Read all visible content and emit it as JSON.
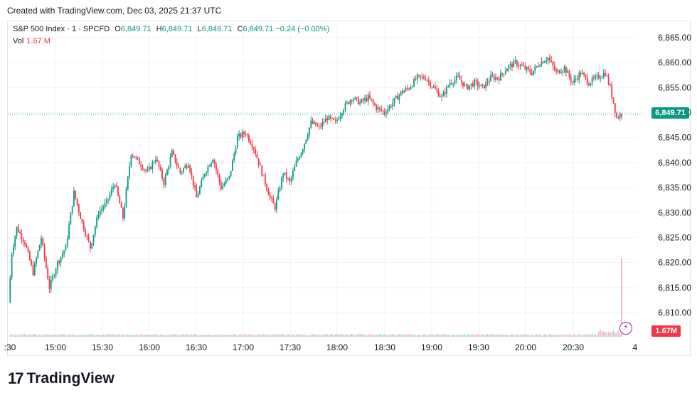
{
  "header": {
    "created": "Created with TradingView.com, Dec 03, 2025 21:37 UTC"
  },
  "legend": {
    "symbol": "S&P 500 Index · 1 · SPCFD",
    "open_label": "O",
    "open": "6,849.71",
    "high_label": "H",
    "high": "6,849.71",
    "low_label": "L",
    "low": "6,849.71",
    "close_label": "C",
    "close": "6,849.71",
    "change": "−0.24 (−0.00%)",
    "vol_label": "Vol",
    "vol_value": "1.67 M"
  },
  "price_tag": "6,849.71",
  "volume_tag": "1.67M",
  "brand": {
    "logo": "17",
    "name": "TradingView"
  },
  "colors": {
    "up": "#089981",
    "down": "#f23645",
    "grid": "#f0f3fa",
    "accent": "#9c27b0"
  },
  "icons": [
    "lightning-icon",
    "tradingview-logo-icon"
  ],
  "chart_data": {
    "type": "candlestick",
    "title": "S&P 500 Index · 1 · SPCFD",
    "y_ticks": [
      "6,810.00",
      "6,815.00",
      "6,820.00",
      "6,825.00",
      "6,830.00",
      "6,835.00",
      "6,840.00",
      "6,845.00",
      "6,850.00",
      "6,855.00",
      "6,860.00",
      "6,865.00"
    ],
    "x_ticks": [
      ":30",
      "15:00",
      "15:30",
      "16:00",
      "16:30",
      "17:00",
      "17:30",
      "18:00",
      "18:30",
      "19:00",
      "19:30",
      "20:00",
      "20:30",
      "4"
    ],
    "ylim": [
      6807,
      6868
    ],
    "last_price": 6849.71,
    "series": [
      {
        "name": "price path",
        "values": [
          [
            0,
            6812
          ],
          [
            2,
            6822
          ],
          [
            5,
            6827
          ],
          [
            10,
            6824
          ],
          [
            15,
            6818
          ],
          [
            20,
            6825
          ],
          [
            25,
            6815
          ],
          [
            30,
            6820
          ],
          [
            35,
            6823
          ],
          [
            40,
            6834
          ],
          [
            45,
            6828
          ],
          [
            50,
            6823
          ],
          [
            55,
            6830
          ],
          [
            60,
            6832
          ],
          [
            65,
            6836
          ],
          [
            70,
            6829
          ],
          [
            75,
            6842
          ],
          [
            80,
            6840
          ],
          [
            85,
            6838
          ],
          [
            90,
            6841
          ],
          [
            95,
            6836
          ],
          [
            100,
            6842
          ],
          [
            105,
            6838
          ],
          [
            110,
            6840
          ],
          [
            115,
            6833
          ],
          [
            120,
            6838
          ],
          [
            125,
            6841
          ],
          [
            130,
            6835
          ],
          [
            135,
            6837
          ],
          [
            140,
            6845
          ],
          [
            145,
            6846
          ],
          [
            150,
            6843
          ],
          [
            155,
            6838
          ],
          [
            160,
            6833
          ],
          [
            163,
            6831
          ],
          [
            168,
            6838
          ],
          [
            172,
            6836
          ],
          [
            176,
            6840
          ],
          [
            180,
            6843
          ],
          [
            185,
            6848
          ],
          [
            190,
            6847
          ],
          [
            195,
            6849
          ],
          [
            200,
            6848
          ],
          [
            205,
            6851
          ],
          [
            210,
            6853
          ],
          [
            215,
            6852
          ],
          [
            220,
            6853
          ],
          [
            225,
            6851
          ],
          [
            230,
            6850
          ],
          [
            235,
            6852
          ],
          [
            240,
            6854
          ],
          [
            245,
            6855
          ],
          [
            250,
            6857
          ],
          [
            255,
            6857
          ],
          [
            260,
            6855
          ],
          [
            265,
            6853
          ],
          [
            270,
            6856
          ],
          [
            275,
            6857
          ],
          [
            280,
            6855
          ],
          [
            285,
            6856
          ],
          [
            290,
            6855
          ],
          [
            295,
            6857
          ],
          [
            300,
            6857
          ],
          [
            305,
            6859
          ],
          [
            310,
            6860
          ],
          [
            315,
            6859
          ],
          [
            320,
            6858
          ],
          [
            325,
            6860
          ],
          [
            330,
            6861
          ],
          [
            335,
            6858
          ],
          [
            340,
            6859
          ],
          [
            345,
            6856
          ],
          [
            350,
            6858
          ],
          [
            355,
            6856
          ],
          [
            360,
            6857
          ],
          [
            365,
            6858
          ],
          [
            368,
            6855
          ],
          [
            372,
            6849
          ],
          [
            375,
            6849.71
          ]
        ]
      }
    ],
    "volume": {
      "last": 1.67,
      "unit": "M",
      "spike_index": 375
    }
  }
}
